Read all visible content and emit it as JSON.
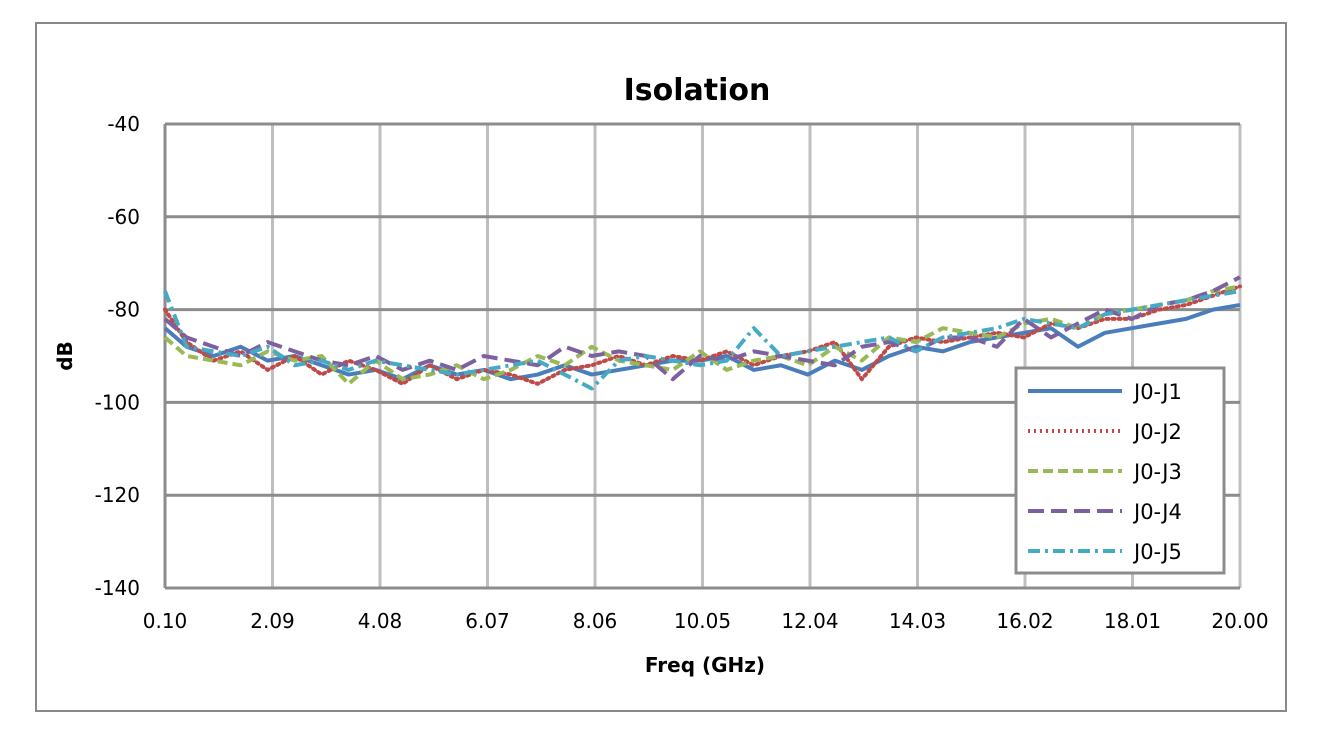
{
  "chart_data": {
    "type": "line",
    "title": "Isolation",
    "xlabel": "Freq (GHz)",
    "ylabel": "dB",
    "xlim": [
      0.1,
      20.0
    ],
    "ylim": [
      -140,
      -40
    ],
    "x_tick_labels": [
      "0.10",
      "2.09",
      "4.08",
      "6.07",
      "8.06",
      "10.05",
      "12.04",
      "14.03",
      "16.02",
      "18.01",
      "20.00"
    ],
    "y_ticks": [
      -40,
      -60,
      -80,
      -100,
      -120,
      -140
    ],
    "grid": true,
    "legend_position": "bottom-right",
    "x": [
      0.1,
      0.5,
      1,
      1.5,
      2,
      2.5,
      3,
      3.5,
      4,
      4.5,
      5,
      5.5,
      6,
      6.5,
      7,
      7.5,
      8,
      8.5,
      9,
      9.5,
      10,
      10.5,
      11,
      11.5,
      12,
      12.5,
      13,
      13.5,
      14,
      14.5,
      15,
      15.5,
      16,
      16.5,
      17,
      17.5,
      18,
      18.5,
      19,
      19.5,
      20
    ],
    "series": [
      {
        "name": "J0-J1",
        "color": "#4a7ebb",
        "style": "solid",
        "values": [
          -84,
          -88,
          -90,
          -88,
          -91,
          -90,
          -92,
          -94,
          -93,
          -95,
          -92,
          -94,
          -93,
          -95,
          -94,
          -92,
          -94,
          -93,
          -92,
          -91,
          -91,
          -90,
          -93,
          -92,
          -94,
          -91,
          -93,
          -90,
          -88,
          -89,
          -87,
          -86,
          -85,
          -84,
          -88,
          -85,
          -84,
          -83,
          -82,
          -80,
          -79
        ]
      },
      {
        "name": "J0-J2",
        "color": "#be4b48",
        "style": "dotted",
        "values": [
          -80,
          -87,
          -91,
          -89,
          -93,
          -90,
          -94,
          -91,
          -93,
          -96,
          -92,
          -95,
          -93,
          -94,
          -96,
          -93,
          -92,
          -90,
          -92,
          -90,
          -91,
          -89,
          -92,
          -90,
          -89,
          -87,
          -95,
          -88,
          -86,
          -87,
          -86,
          -85,
          -86,
          -83,
          -84,
          -82,
          -82,
          -80,
          -79,
          -77,
          -75
        ]
      },
      {
        "name": "J0-J3",
        "color": "#98b954",
        "style": "dashed",
        "values": [
          -86,
          -90,
          -91,
          -92,
          -89,
          -91,
          -90,
          -96,
          -91,
          -95,
          -94,
          -92,
          -95,
          -93,
          -90,
          -92,
          -88,
          -91,
          -92,
          -93,
          -89,
          -93,
          -91,
          -90,
          -92,
          -88,
          -91,
          -86,
          -87,
          -84,
          -85,
          -86,
          -83,
          -82,
          -84,
          -81,
          -80,
          -79,
          -78,
          -76,
          -75
        ]
      },
      {
        "name": "J0-J4",
        "color": "#7d60a0",
        "style": "long-dash",
        "values": [
          -82,
          -86,
          -88,
          -90,
          -87,
          -89,
          -91,
          -92,
          -90,
          -93,
          -91,
          -93,
          -90,
          -91,
          -92,
          -88,
          -90,
          -89,
          -90,
          -95,
          -90,
          -91,
          -89,
          -90,
          -91,
          -92,
          -88,
          -87,
          -89,
          -86,
          -86,
          -88,
          -82,
          -86,
          -83,
          -80,
          -82,
          -79,
          -78,
          -76,
          -73
        ]
      },
      {
        "name": "J0-J5",
        "color": "#46aac5",
        "style": "dash-dot",
        "values": [
          -76,
          -88,
          -89,
          -90,
          -88,
          -92,
          -91,
          -93,
          -91,
          -92,
          -93,
          -94,
          -93,
          -92,
          -91,
          -94,
          -97,
          -91,
          -90,
          -91,
          -92,
          -91,
          -84,
          -90,
          -89,
          -88,
          -87,
          -86,
          -89,
          -86,
          -85,
          -84,
          -82,
          -83,
          -84,
          -81,
          -80,
          -79,
          -78,
          -77,
          -76
        ]
      }
    ]
  }
}
